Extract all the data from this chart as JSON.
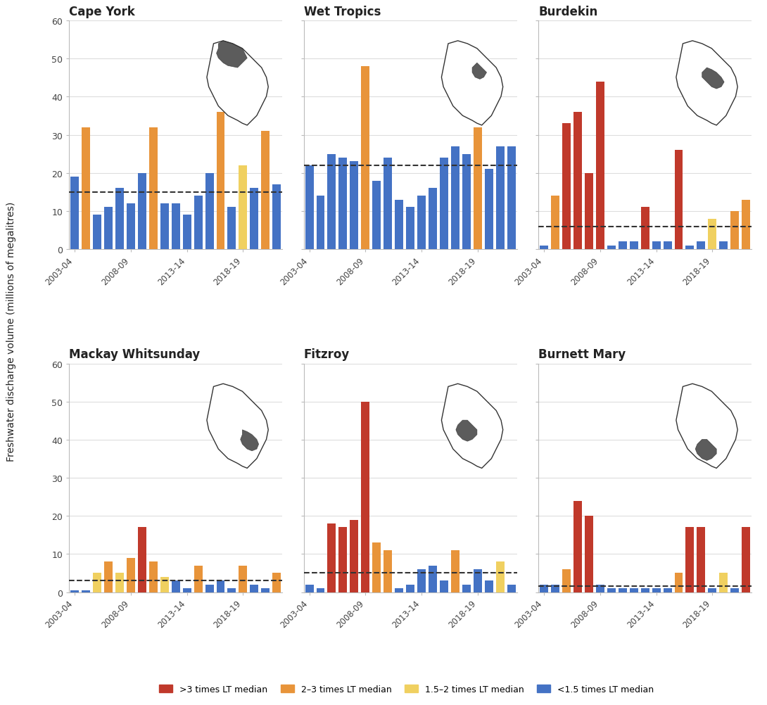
{
  "subplots": [
    {
      "title": "Cape York",
      "median_line": 15,
      "values": [
        19,
        32,
        9,
        11,
        16,
        12,
        20,
        32,
        12,
        12,
        9,
        14,
        20,
        36,
        11,
        22,
        16,
        31,
        17
      ],
      "colors": [
        "blue",
        "orange",
        "blue",
        "blue",
        "blue",
        "blue",
        "blue",
        "orange",
        "blue",
        "blue",
        "blue",
        "blue",
        "blue",
        "orange",
        "blue",
        "yellow",
        "blue",
        "orange",
        "blue"
      ]
    },
    {
      "title": "Wet Tropics",
      "median_line": 22,
      "values": [
        22,
        14,
        25,
        24,
        23,
        48,
        18,
        24,
        13,
        11,
        14,
        16,
        24,
        27,
        25,
        32,
        21,
        27,
        27
      ],
      "colors": [
        "blue",
        "blue",
        "blue",
        "blue",
        "blue",
        "orange",
        "blue",
        "blue",
        "blue",
        "blue",
        "blue",
        "blue",
        "blue",
        "blue",
        "blue",
        "orange",
        "blue",
        "blue",
        "blue"
      ]
    },
    {
      "title": "Burdekin",
      "median_line": 6,
      "values": [
        1,
        14,
        33,
        36,
        20,
        44,
        1,
        2,
        2,
        11,
        2,
        2,
        26,
        1,
        2,
        8,
        2,
        10,
        13
      ],
      "colors": [
        "blue",
        "orange",
        "red",
        "red",
        "red",
        "red",
        "blue",
        "blue",
        "blue",
        "red",
        "blue",
        "blue",
        "red",
        "blue",
        "blue",
        "yellow",
        "blue",
        "orange",
        "orange"
      ]
    },
    {
      "title": "Mackay Whitsunday",
      "median_line": 3,
      "values": [
        0.5,
        0.5,
        5,
        8,
        5,
        9,
        17,
        8,
        4,
        3,
        1,
        7,
        2,
        3,
        1,
        7,
        2,
        1,
        5
      ],
      "colors": [
        "blue",
        "blue",
        "yellow",
        "orange",
        "yellow",
        "orange",
        "red",
        "orange",
        "yellow",
        "blue",
        "blue",
        "orange",
        "blue",
        "blue",
        "blue",
        "orange",
        "blue",
        "blue",
        "orange"
      ]
    },
    {
      "title": "Fitzroy",
      "median_line": 5,
      "values": [
        2,
        1,
        18,
        17,
        19,
        50,
        13,
        11,
        1,
        2,
        6,
        7,
        3,
        11,
        2,
        6,
        3,
        8,
        2
      ],
      "colors": [
        "blue",
        "blue",
        "red",
        "red",
        "red",
        "red",
        "orange",
        "orange",
        "blue",
        "blue",
        "blue",
        "blue",
        "blue",
        "orange",
        "blue",
        "blue",
        "blue",
        "yellow",
        "blue"
      ]
    },
    {
      "title": "Burnett Mary",
      "median_line": 1.5,
      "values": [
        2,
        2,
        6,
        24,
        20,
        2,
        1,
        1,
        1,
        1,
        1,
        1,
        5,
        17,
        17,
        1,
        5,
        1,
        17
      ],
      "colors": [
        "blue",
        "blue",
        "orange",
        "red",
        "red",
        "blue",
        "blue",
        "blue",
        "blue",
        "blue",
        "blue",
        "blue",
        "orange",
        "red",
        "red",
        "blue",
        "yellow",
        "blue",
        "red"
      ]
    }
  ],
  "color_map": {
    "red": "#C0392B",
    "orange": "#E8943A",
    "yellow": "#F0D060",
    "blue": "#4472C4"
  },
  "xtick_labels": [
    "2003-04",
    "2008-09",
    "2013-14",
    "2018-19"
  ],
  "xtick_positions": [
    0,
    5,
    10,
    15
  ],
  "ylim": [
    0,
    60
  ],
  "yticks": [
    0,
    10,
    20,
    30,
    40,
    50,
    60
  ],
  "background_color": "#ffffff",
  "grid_color": "#dddddd",
  "legend_labels": [
    ">3 times LT median",
    "2–3 times LT median",
    "1.5–2 times LT median",
    "<1.5 times LT median"
  ],
  "legend_colors": [
    "#C0392B",
    "#E8943A",
    "#F0D060",
    "#4472C4"
  ]
}
